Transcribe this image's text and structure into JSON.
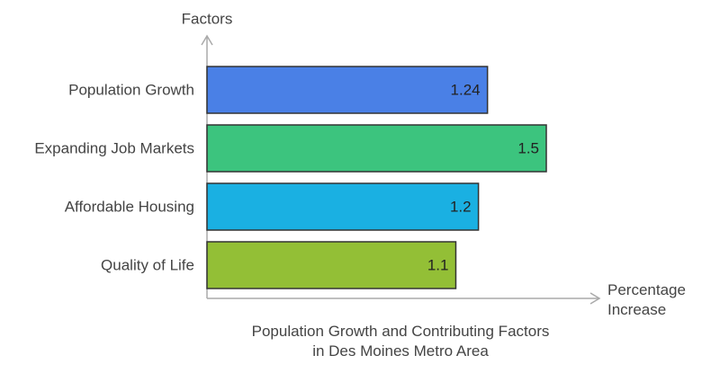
{
  "chart_data": {
    "type": "bar",
    "orientation": "horizontal",
    "title": "Population Growth and Contributing Factors\nin Des Moines Metro Area",
    "y_label": "Factors",
    "x_label": "Percentage\nIncrease",
    "categories": [
      "Population Growth",
      "Expanding Job Markets",
      "Affordable Housing",
      "Quality of Life"
    ],
    "values": [
      1.24,
      1.5,
      1.2,
      1.1
    ],
    "colors": [
      "#4a80e6",
      "#3cc47e",
      "#1ab0e2",
      "#93bf36"
    ],
    "show_value_labels": true
  }
}
